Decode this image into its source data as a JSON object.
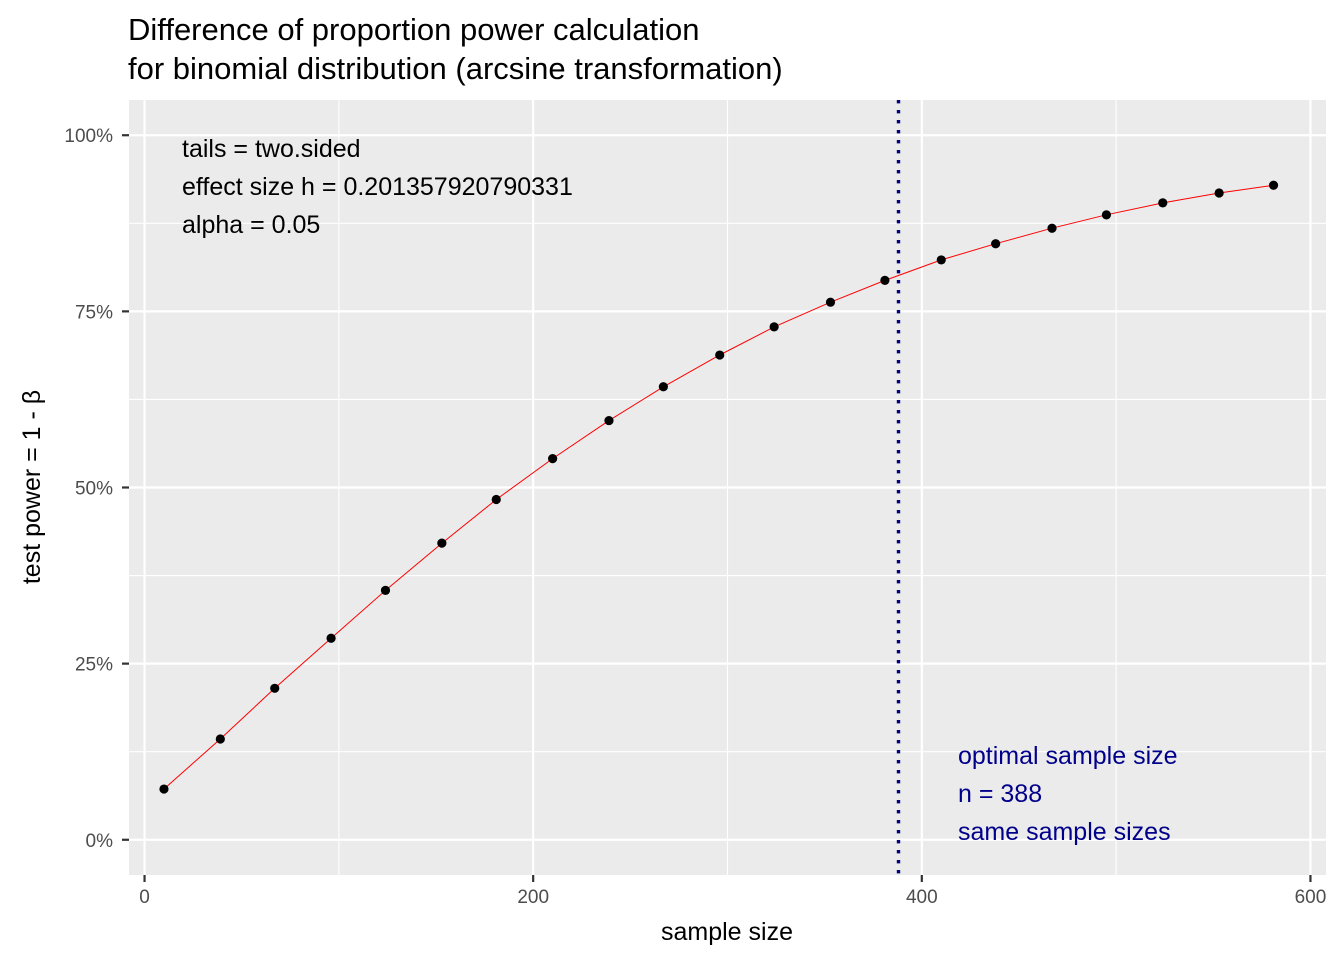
{
  "chart_data": {
    "type": "line",
    "title": "Difference of proportion power calculation",
    "subtitle": "for binomial distribution (arcsine transformation)",
    "xlabel": "sample size",
    "ylabel": "test power = 1 - β",
    "xlim": [
      -8,
      608
    ],
    "ylim": [
      -0.05,
      1.05
    ],
    "x_ticks": [
      0,
      200,
      400,
      600
    ],
    "x_tick_labels": [
      "0",
      "200",
      "400",
      "600"
    ],
    "y_ticks": [
      0,
      0.25,
      0.5,
      0.75,
      1.0
    ],
    "y_tick_labels": [
      "0%",
      "25%",
      "50%",
      "75%",
      "100%"
    ],
    "grid": true,
    "series": [
      {
        "x": [
          10,
          39,
          67,
          96,
          124,
          153,
          181,
          210,
          239,
          267,
          296,
          324,
          353,
          381,
          410,
          438,
          467,
          495,
          524,
          553,
          581
        ],
        "y": [
          0.072,
          0.143,
          0.215,
          0.286,
          0.354,
          0.421,
          0.483,
          0.541,
          0.595,
          0.643,
          0.688,
          0.728,
          0.763,
          0.794,
          0.823,
          0.846,
          0.868,
          0.887,
          0.904,
          0.918,
          0.929
        ],
        "line_color": "#ff0000",
        "point_color": "#000000"
      }
    ],
    "vline": {
      "x": 388,
      "color": "#00007f",
      "style": "dotted"
    },
    "annotations_top_left": [
      "tails = two.sided",
      "effect size h = 0.201357920790331",
      "alpha = 0.05"
    ],
    "annotations_bottom_right": [
      "optimal sample size",
      "n = 388",
      "same sample sizes"
    ],
    "annotation_color_top": "#000000",
    "annotation_color_bottom": "#00008b",
    "panel_background": "#ebebeb",
    "grid_color": "#ffffff"
  }
}
